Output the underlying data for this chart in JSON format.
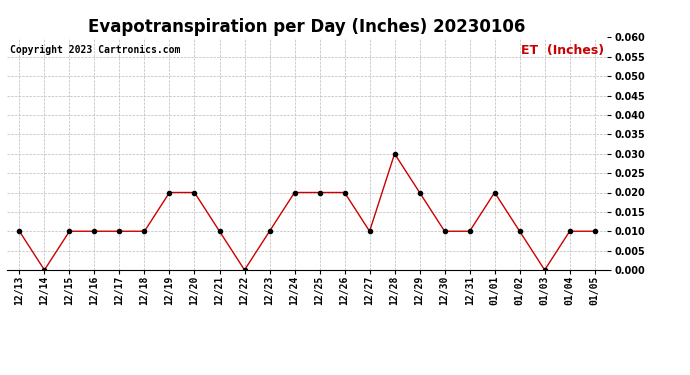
{
  "title": "Evapotranspiration per Day (Inches) 20230106",
  "copyright": "Copyright 2023 Cartronics.com",
  "legend_label": "ET  (Inches)",
  "dates": [
    "12/13",
    "12/14",
    "12/15",
    "12/16",
    "12/17",
    "12/18",
    "12/19",
    "12/20",
    "12/21",
    "12/22",
    "12/23",
    "12/24",
    "12/25",
    "12/26",
    "12/27",
    "12/28",
    "12/29",
    "12/30",
    "12/31",
    "01/01",
    "01/02",
    "01/03",
    "01/04",
    "01/05"
  ],
  "values": [
    0.01,
    0.0,
    0.01,
    0.01,
    0.01,
    0.01,
    0.02,
    0.02,
    0.01,
    0.0,
    0.01,
    0.02,
    0.02,
    0.02,
    0.01,
    0.03,
    0.02,
    0.01,
    0.01,
    0.02,
    0.01,
    0.0,
    0.01,
    0.01
  ],
  "line_color": "#cc0000",
  "marker_color": "#000000",
  "ylim": [
    0.0,
    0.06
  ],
  "yticks": [
    0.0,
    0.005,
    0.01,
    0.015,
    0.02,
    0.025,
    0.03,
    0.035,
    0.04,
    0.045,
    0.05,
    0.055,
    0.06
  ],
  "grid_color": "#bbbbbb",
  "bg_color": "#ffffff",
  "title_fontsize": 12,
  "copyright_fontsize": 7,
  "legend_fontsize": 9,
  "tick_fontsize": 7,
  "legend_color": "#cc0000"
}
